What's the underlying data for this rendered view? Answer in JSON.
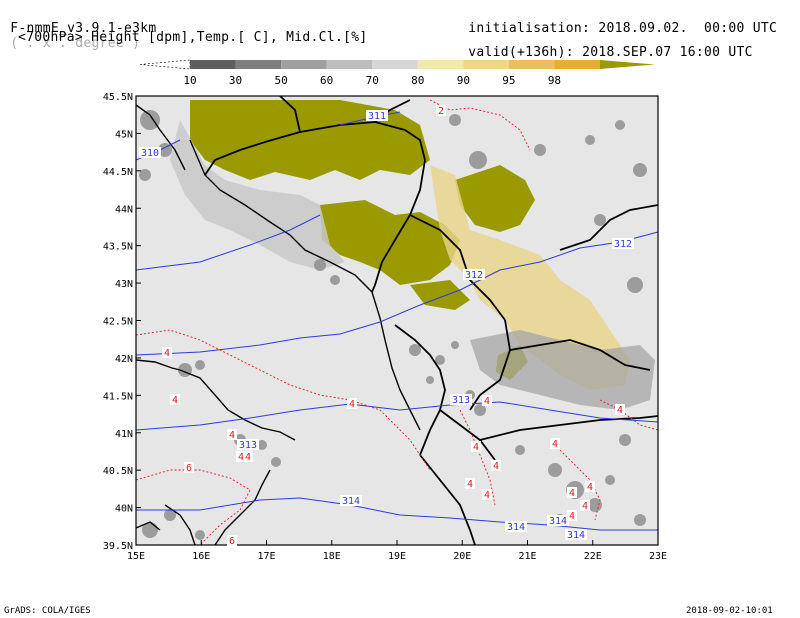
{
  "header": {
    "model": "F-nmmE_v3.9.1-e3km",
    "model_units": "( . x . degree )",
    "variables": "<700hPa> Height [dpm],Temp.[ C], Mid.Cl.[%]",
    "init_label": "initialisation:",
    "init_value": "2018.09.02.  00:00 UTC",
    "valid_label": "valid(+136h):",
    "valid_value": "2018.SEP.07 16:00 UTC"
  },
  "colorbar": {
    "labels": [
      "10",
      "30",
      "50",
      "60",
      "70",
      "80",
      "90",
      "95",
      "98"
    ],
    "colors": [
      "#5e5e5e",
      "#7e7e7e",
      "#a0a0a0",
      "#bdbdbd",
      "#d6d6d6",
      "#efe8b0",
      "#efd78a",
      "#e8c060",
      "#e4b030",
      "#9a9a00"
    ]
  },
  "map": {
    "lon_labels": [
      "15E",
      "16E",
      "17E",
      "18E",
      "19E",
      "20E",
      "21E",
      "22E",
      "23E"
    ],
    "lat_labels": [
      "45.5N",
      "45N",
      "44.5N",
      "44N",
      "43.5N",
      "43N",
      "42.5N",
      "42N",
      "41.5N",
      "41N",
      "40.5N",
      "40N",
      "39.5N"
    ],
    "height_labels": [
      "311",
      "310",
      "312",
      "312",
      "313",
      "313",
      "314",
      "314",
      "314",
      "314"
    ],
    "temp_labels": [
      "2",
      "4",
      "4",
      "4",
      "4",
      "4",
      "4",
      "4",
      "4",
      "4",
      "4",
      "4",
      "4",
      "4",
      "4",
      "4",
      "4",
      "4",
      "6",
      "6"
    ]
  },
  "footer": {
    "left": "GrADS: COLA/IGES",
    "right": "2018-09-02-10:01"
  },
  "colors": {
    "land": "#e6e6e6",
    "sea": "#e6e6e6",
    "height_contour": "#2c3cd8",
    "temp_contour": "#e02020",
    "olive": "#9a9a00"
  }
}
